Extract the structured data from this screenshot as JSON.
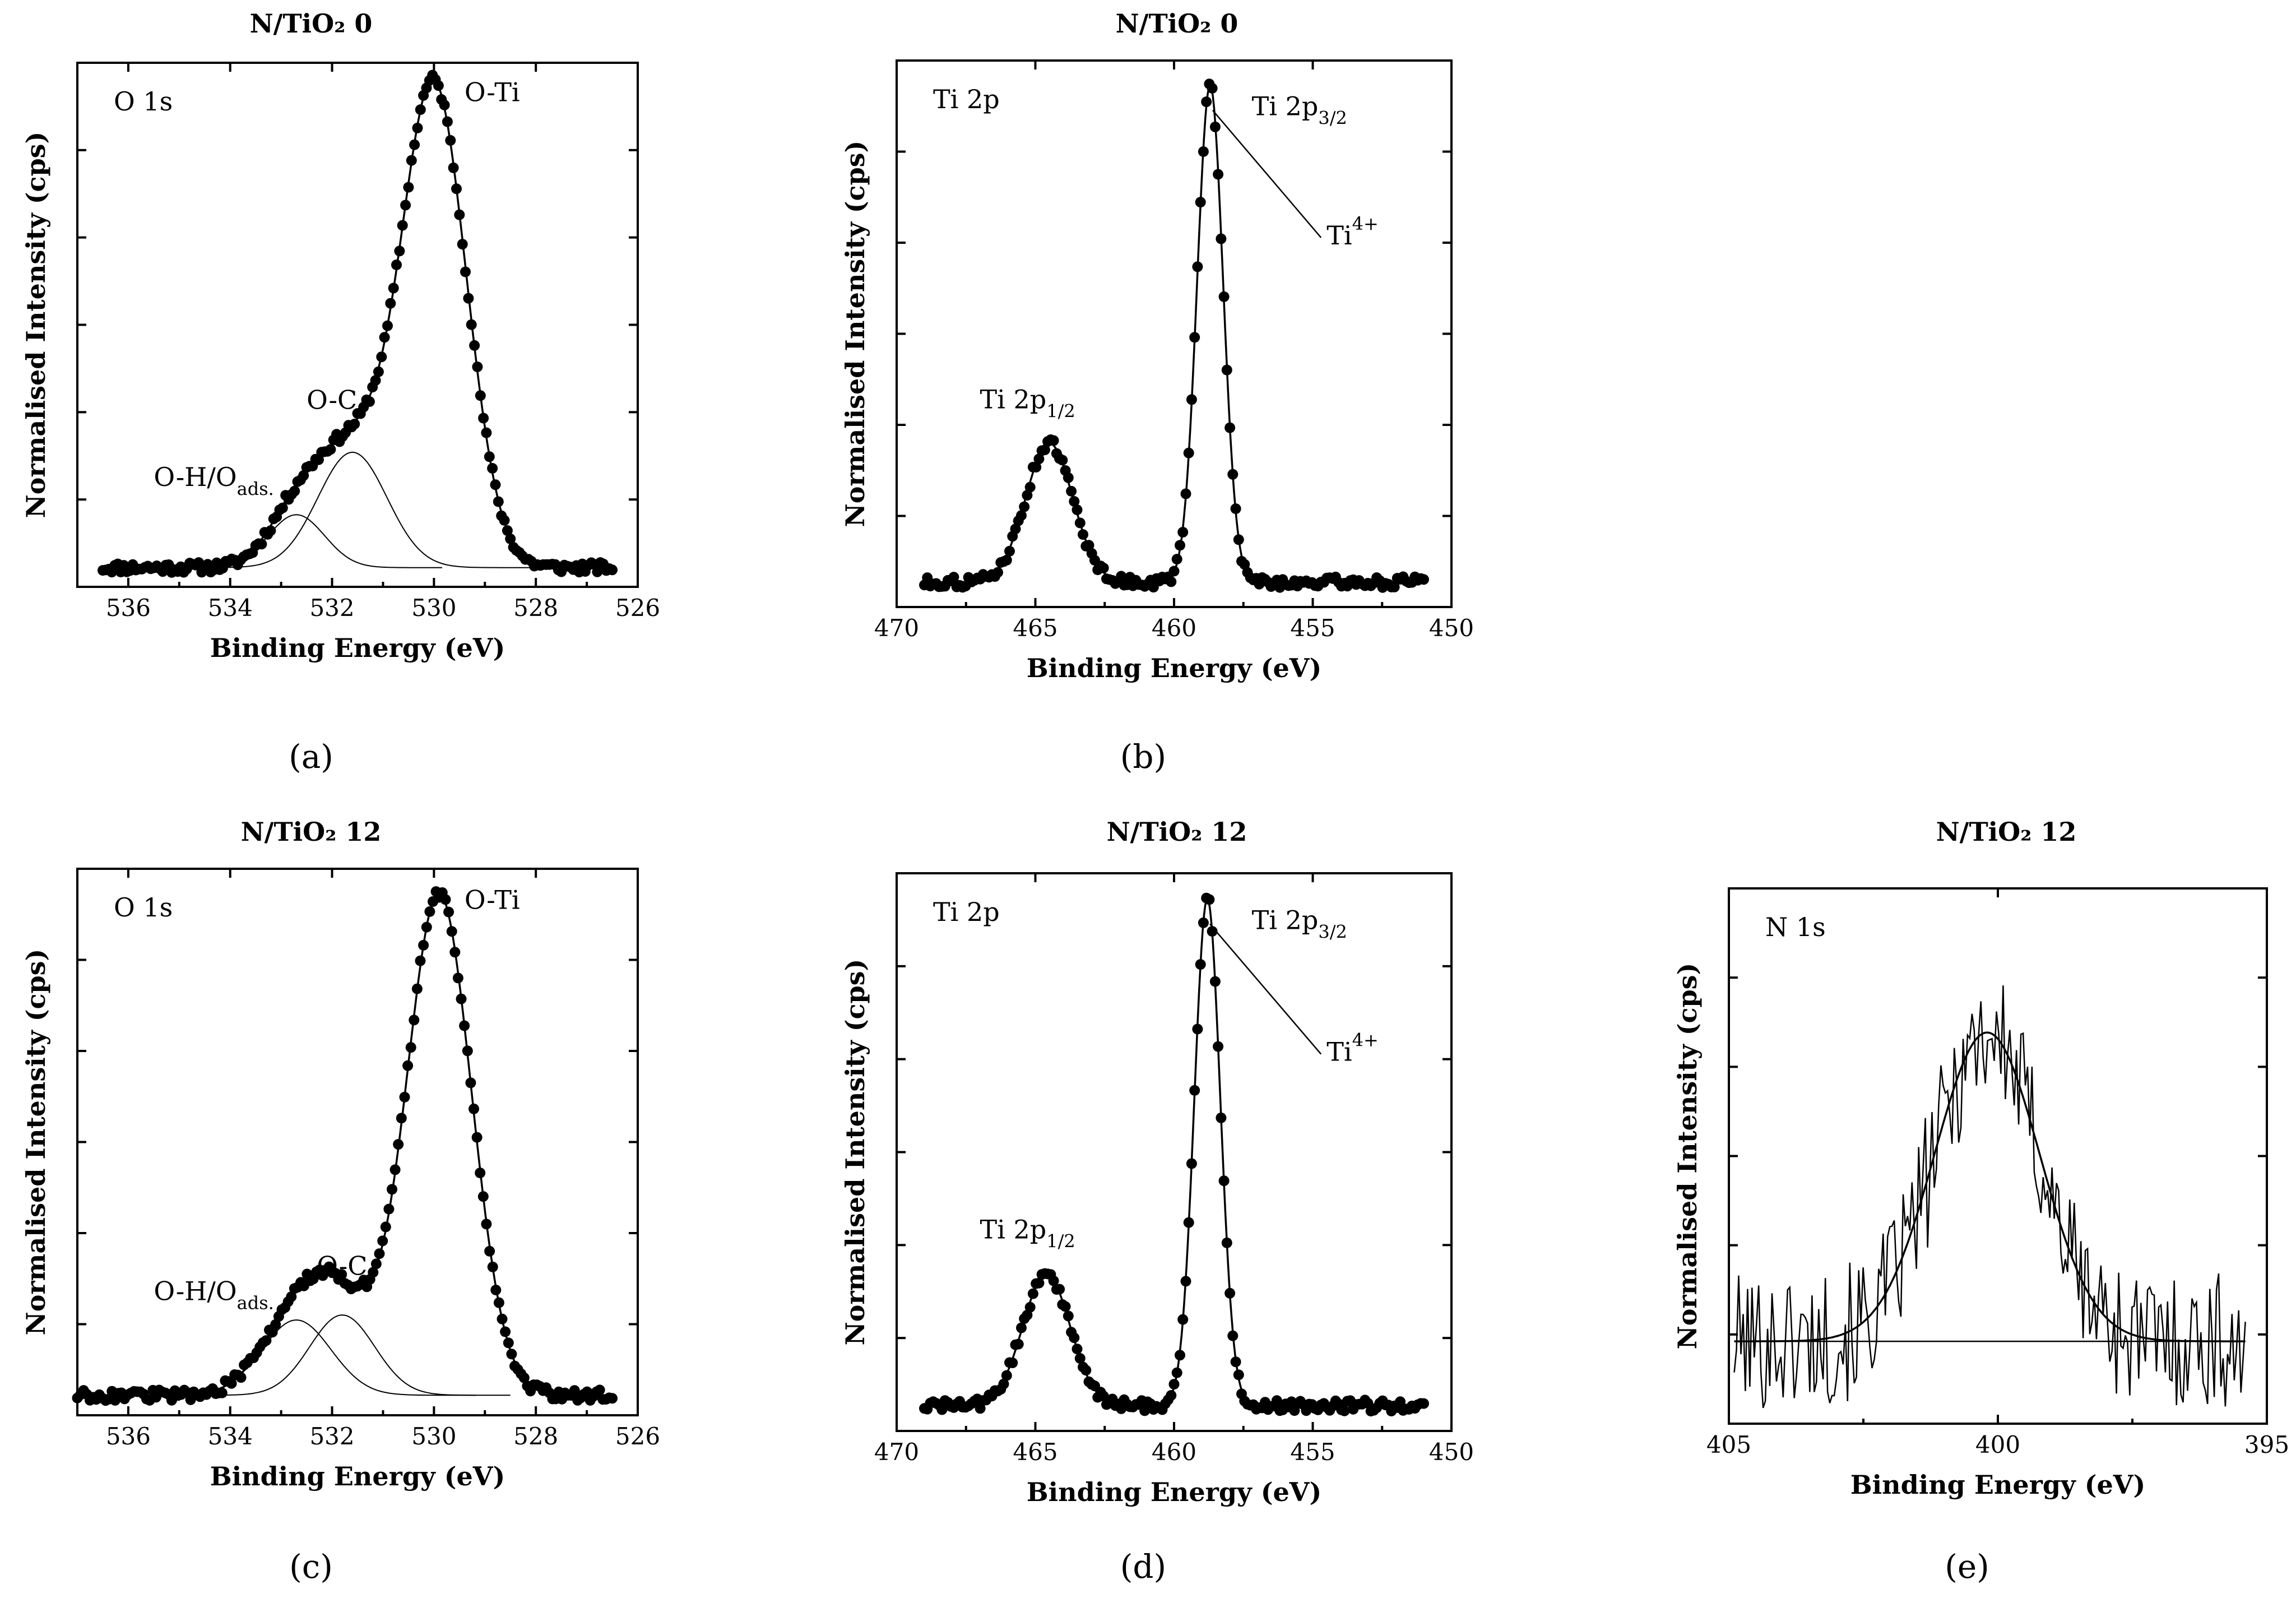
{
  "chart_data": [
    {
      "id": "a",
      "type": "line",
      "panel_label": "(a)",
      "title": "N/TiO₂ 0",
      "spectrum": "O 1s",
      "xlabel": "Binding Energy (eV)",
      "ylabel": "Normalised Intensity (cps)",
      "xlim": [
        537,
        526
      ],
      "ylim": [
        -0.04,
        1.05
      ],
      "xticks": [
        536,
        534,
        532,
        530,
        528,
        526
      ],
      "x_range": [
        536.5,
        526.5
      ],
      "background": 0,
      "components": [
        {
          "name": "O-Ti",
          "center": 530.0,
          "height": 1.0,
          "fwhm": 1.5
        },
        {
          "name": "O-C",
          "center": 531.6,
          "height": 0.24,
          "fwhm": 1.6
        },
        {
          "name": "O-H/O ads.",
          "center": 532.7,
          "height": 0.11,
          "fwhm": 1.3
        }
      ],
      "annotations": [
        {
          "text": "O-Ti",
          "x": 529.4,
          "y": 0.97
        },
        {
          "text": "O-C",
          "x": 532.5,
          "y": 0.33
        },
        {
          "text": "O-H/O",
          "sub": "ads.",
          "x": 535.5,
          "y": 0.17
        }
      ]
    },
    {
      "id": "b",
      "type": "line",
      "panel_label": "(b)",
      "title": "N/TiO₂ 0",
      "spectrum": "Ti 2p",
      "xlabel": "Binding Energy (eV)",
      "ylabel": "Normalised Intensity (cps)",
      "xlim": [
        470,
        450
      ],
      "ylim": [
        -0.05,
        1.05
      ],
      "xticks": [
        470,
        465,
        460,
        455,
        450
      ],
      "x_range": [
        469,
        451
      ],
      "background": 0,
      "components": [
        {
          "name": "Ti 2p3/2",
          "center": 458.7,
          "height": 1.0,
          "fwhm": 1.1
        },
        {
          "name": "Ti 2p1/2",
          "center": 464.5,
          "height": 0.28,
          "fwhm": 2.0
        }
      ],
      "annotations": [
        {
          "text": "Ti 2p",
          "sub": "3/2",
          "x": 457.2,
          "y": 0.94
        },
        {
          "text": "Ti 2p",
          "sub": "1/2",
          "x": 467.0,
          "y": 0.35
        },
        {
          "text": "Ti",
          "sup": "4+",
          "x": 454.5,
          "y": 0.68
        }
      ]
    },
    {
      "id": "c",
      "type": "line",
      "panel_label": "(c)",
      "title": "N/TiO₂ 12",
      "spectrum": "O 1s",
      "xlabel": "Binding Energy (eV)",
      "ylabel": "Normalised Intensity (cps)",
      "xlim": [
        537,
        526
      ],
      "ylim": [
        -0.04,
        1.05
      ],
      "xticks": [
        536,
        534,
        532,
        530,
        528,
        526
      ],
      "x_range": [
        537,
        526.5
      ],
      "background": 0,
      "components": [
        {
          "name": "O-Ti",
          "center": 529.9,
          "height": 1.0,
          "fwhm": 1.5
        },
        {
          "name": "O-C",
          "center": 531.8,
          "height": 0.16,
          "fwhm": 1.5
        },
        {
          "name": "O-H/O ads.",
          "center": 532.7,
          "height": 0.15,
          "fwhm": 1.6
        }
      ],
      "annotations": [
        {
          "text": "O-Ti",
          "x": 529.4,
          "y": 0.97
        },
        {
          "text": "O-C",
          "x": 532.3,
          "y": 0.24
        },
        {
          "text": "O-H/O",
          "sub": "ads.",
          "x": 535.5,
          "y": 0.19
        }
      ]
    },
    {
      "id": "d",
      "type": "line",
      "panel_label": "(d)",
      "title": "N/TiO₂ 12",
      "spectrum": "Ti 2p",
      "xlabel": "Binding Energy (eV)",
      "ylabel": "Normalised Intensity (cps)",
      "xlim": [
        470,
        450
      ],
      "ylim": [
        -0.05,
        1.05
      ],
      "xticks": [
        470,
        465,
        460,
        455,
        450
      ],
      "x_range": [
        469,
        451
      ],
      "background": 0,
      "components": [
        {
          "name": "Ti 2p3/2",
          "center": 458.8,
          "height": 1.0,
          "fwhm": 1.1
        },
        {
          "name": "Ti 2p1/2",
          "center": 464.6,
          "height": 0.26,
          "fwhm": 2.0
        }
      ],
      "annotations": [
        {
          "text": "Ti 2p",
          "sub": "3/2",
          "x": 457.2,
          "y": 0.94
        },
        {
          "text": "Ti 2p",
          "sub": "1/2",
          "x": 467.0,
          "y": 0.33
        },
        {
          "text": "Ti",
          "sup": "4+",
          "x": 454.5,
          "y": 0.68
        }
      ]
    },
    {
      "id": "e",
      "type": "line",
      "panel_label": "(e)",
      "title": "N/TiO₂ 12",
      "spectrum": "N 1s",
      "xlabel": "Binding Energy (eV)",
      "ylabel": "Normalised Intensity (cps)",
      "xlim": [
        405,
        395
      ],
      "ylim": [
        -0.2,
        1.1
      ],
      "xticks": [
        405,
        400,
        395
      ],
      "x_range": [
        404.9,
        395.4
      ],
      "background": 0,
      "noise_amplitude": 0.28,
      "components": [
        {
          "name": "N 1s",
          "center": 400.2,
          "height": 0.75,
          "fwhm": 2.3
        }
      ],
      "annotations": []
    }
  ]
}
